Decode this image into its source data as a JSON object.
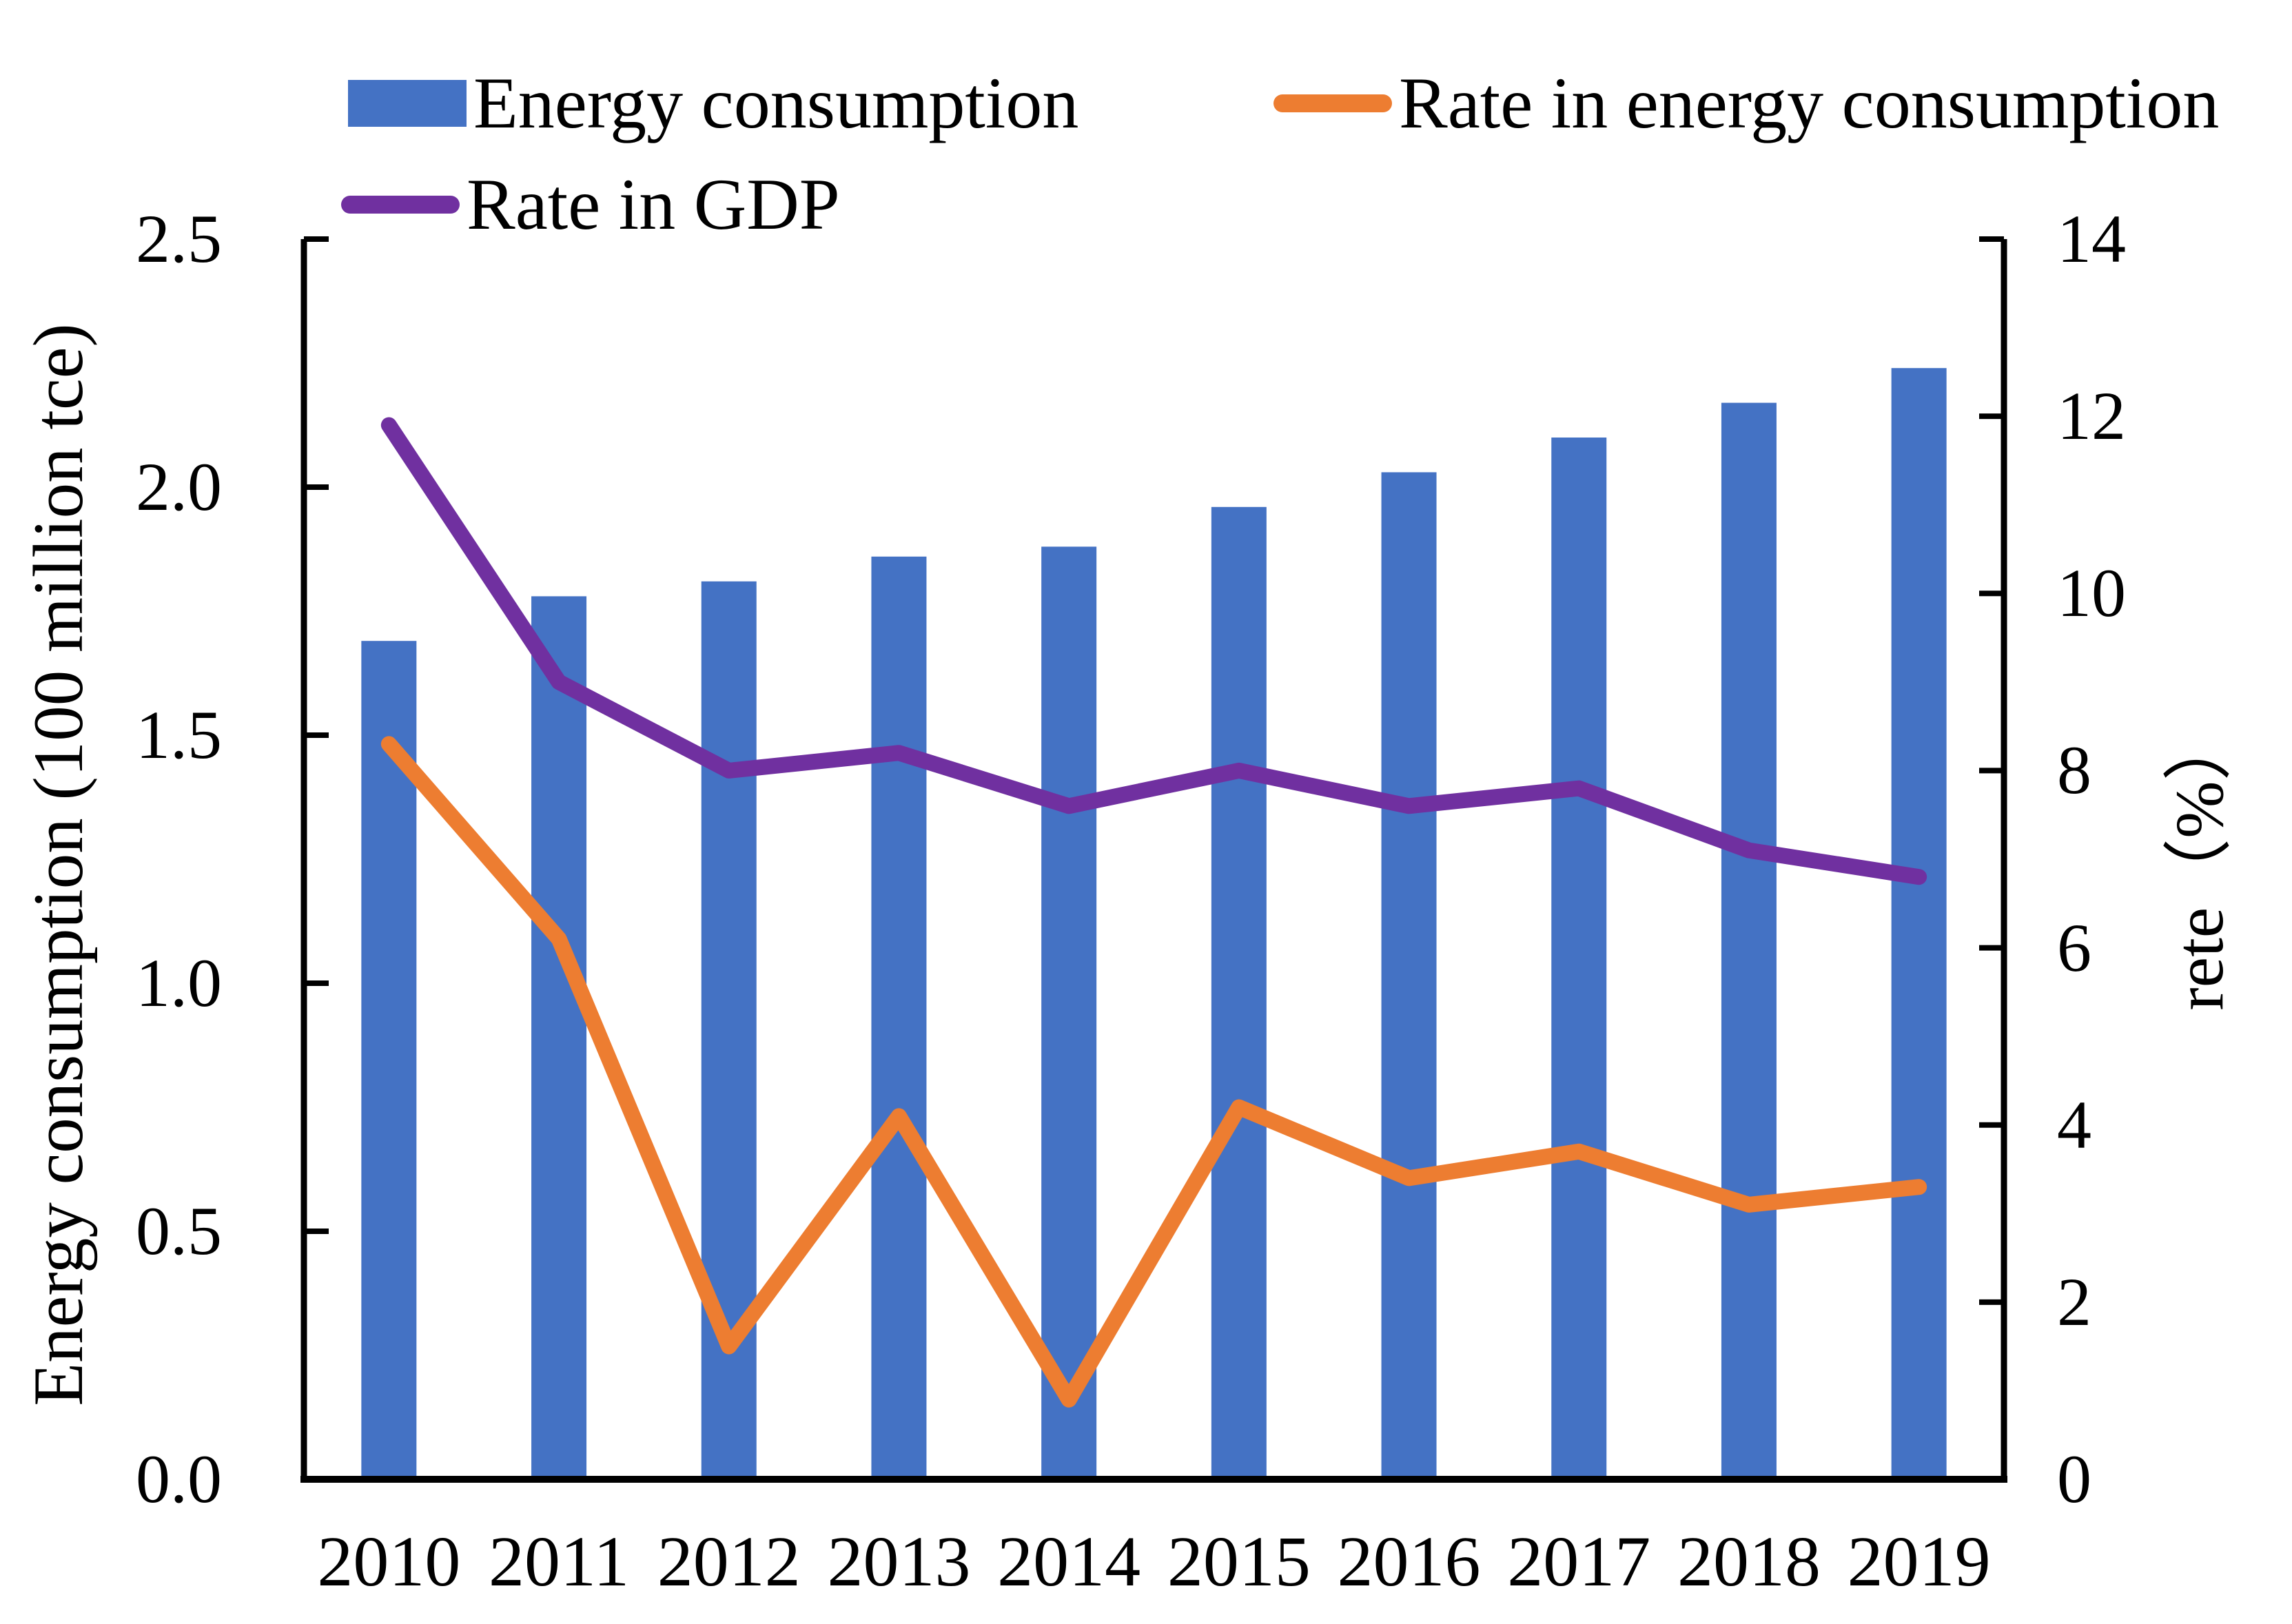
{
  "chart_data": {
    "type": "combo",
    "categories": [
      "2010",
      "2011",
      "2012",
      "2013",
      "2014",
      "2015",
      "2016",
      "2017",
      "2018",
      "2019"
    ],
    "series": [
      {
        "name": "Energy consumption",
        "type": "bar",
        "axis": "left",
        "color": "#4472C4",
        "values": [
          1.69,
          1.78,
          1.81,
          1.86,
          1.88,
          1.96,
          2.03,
          2.1,
          2.17,
          2.24
        ]
      },
      {
        "name": "Rate in energy consumption",
        "type": "line",
        "axis": "right",
        "color": "#ED7D31",
        "values": [
          8.3,
          6.1,
          1.5,
          4.1,
          0.9,
          4.2,
          3.4,
          3.7,
          3.1,
          3.3
        ]
      },
      {
        "name": "Rate in GDP",
        "type": "line",
        "axis": "right",
        "color": "#7030A0",
        "values": [
          11.9,
          9.0,
          8.0,
          8.2,
          7.6,
          8.0,
          7.6,
          7.8,
          7.1,
          6.8
        ]
      }
    ],
    "left_axis": {
      "label": "Energy consumption (100 million tce)",
      "min": 0,
      "max": 2.5,
      "tick_values": [
        2.5,
        2.0,
        1.5,
        1.0,
        0.5,
        0.0
      ],
      "tick_labels": [
        "2.5",
        "2.0",
        "1.5",
        "1.0",
        "0.5",
        "0.0"
      ]
    },
    "right_axis": {
      "label": "rete（%）",
      "min": 0,
      "max": 14,
      "tick_values": [
        14,
        12,
        10,
        8,
        6,
        4,
        2,
        0
      ],
      "tick_labels": [
        "14",
        "12",
        "10",
        "8",
        "6",
        "4",
        "2",
        "0"
      ]
    },
    "x_axis": {
      "tick_labels": [
        "2010",
        "2011",
        "2012",
        "2013",
        "2014",
        "2015",
        "2016",
        "2017",
        "2018",
        "2019"
      ]
    },
    "grid": false,
    "legend_position": "top-left",
    "axis_color": "#000000"
  }
}
